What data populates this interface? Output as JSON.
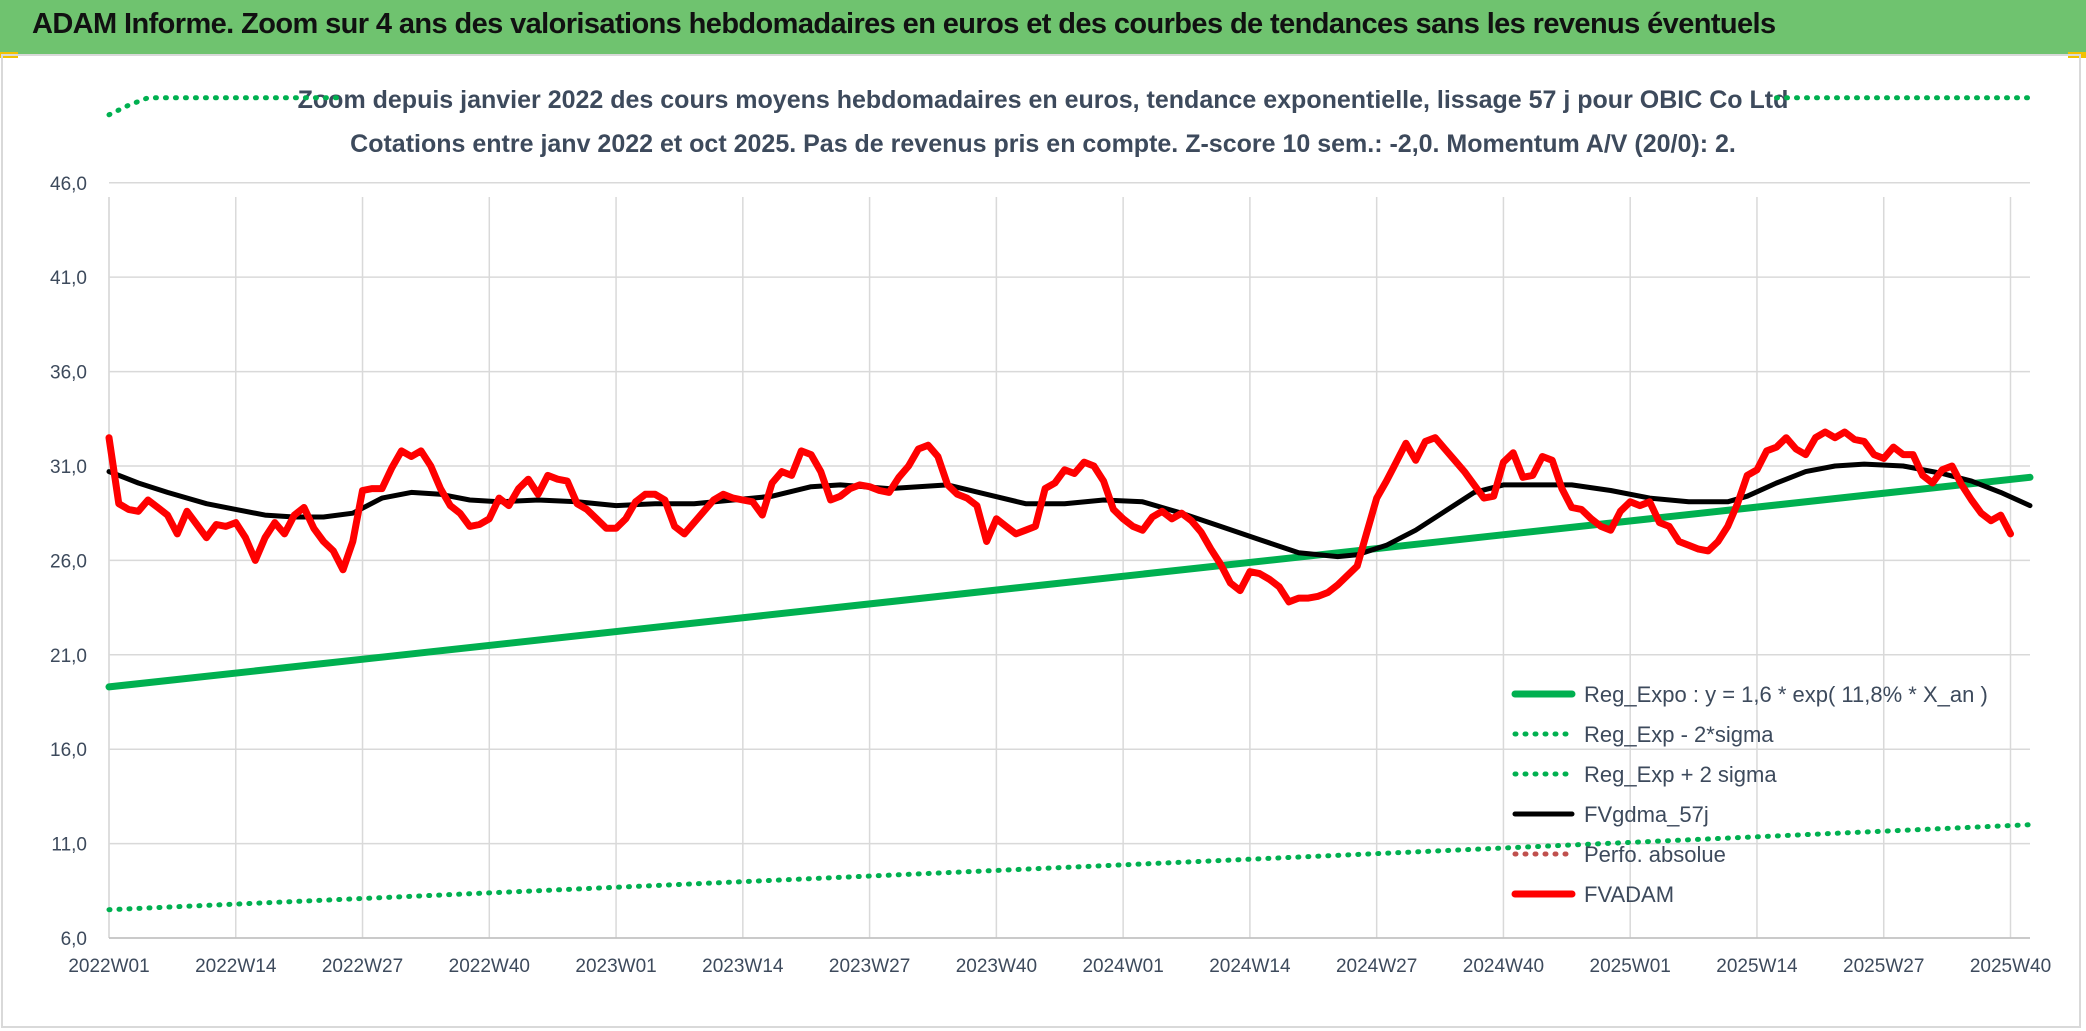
{
  "header": {
    "title": "ADAM Informe. Zoom sur 4 ans des valorisations hebdomadaires en euros et des courbes de tendances sans les revenus éventuels"
  },
  "colors": {
    "header_bg": "#6fc36f",
    "reg_expo": "#00b050",
    "fvgdma": "#000000",
    "fvadam": "#ff0000",
    "grid": "#d9d9d9",
    "text": "#3d4a5c"
  },
  "chart_data": {
    "type": "line",
    "title": "Zoom depuis janvier 2022 des cours moyens hebdomadaires en euros, tendance exponentielle, lissage 57 j pour OBIC Co Ltd",
    "subtitle": "Cotations entre janv 2022 et oct 2025. Pas de revenus pris en compte. Z-score 10 sem.: -2,0. Momentum A/V (20/0): 2.",
    "ylim": [
      6,
      48
    ],
    "yticks": [
      "6,0",
      "11,0",
      "16,0",
      "21,0",
      "26,0",
      "31,0",
      "36,0",
      "41,0",
      "46,0"
    ],
    "x_range_weeks": [
      0,
      197
    ],
    "xticks": [
      {
        "w": 0,
        "label": "2022W01"
      },
      {
        "w": 13,
        "label": "2022W14"
      },
      {
        "w": 26,
        "label": "2022W27"
      },
      {
        "w": 39,
        "label": "2022W40"
      },
      {
        "w": 52,
        "label": "2023W01"
      },
      {
        "w": 65,
        "label": "2023W14"
      },
      {
        "w": 78,
        "label": "2023W27"
      },
      {
        "w": 91,
        "label": "2023W40"
      },
      {
        "w": 104,
        "label": "2024W01"
      },
      {
        "w": 117,
        "label": "2024W14"
      },
      {
        "w": 130,
        "label": "2024W27"
      },
      {
        "w": 143,
        "label": "2024W40"
      },
      {
        "w": 156,
        "label": "2025W01"
      },
      {
        "w": 169,
        "label": "2025W14"
      },
      {
        "w": 182,
        "label": "2025W27"
      },
      {
        "w": 195,
        "label": "2025W40"
      }
    ],
    "legend_position": "bottom-right",
    "grid": true,
    "series": [
      {
        "name": "Reg_Expo : y = 1,6 * exp( 11,8% *  X_an )",
        "style": "solid-thick",
        "color": "#00b050",
        "points": [
          [
            0,
            19.3
          ],
          [
            197,
            30.4
          ]
        ]
      },
      {
        "name": "Reg_Exp - 2*sigma",
        "style": "dotted",
        "color": "#00b050",
        "points": [
          [
            0,
            7.5
          ],
          [
            197,
            12.0
          ]
        ]
      },
      {
        "name": "Reg_Exp + 2 sigma",
        "style": "dotted",
        "color": "#00b050",
        "points": [
          [
            0,
            49.6
          ],
          [
            2,
            50.1
          ],
          [
            4,
            50.5
          ],
          [
            24,
            50.5
          ]
        ],
        "points_right": [
          [
            171,
            50.5
          ],
          [
            197,
            50.5
          ]
        ]
      },
      {
        "name": "FVgdma_57j",
        "style": "solid",
        "color": "#000000",
        "points": [
          [
            0,
            30.7
          ],
          [
            3,
            30.1
          ],
          [
            6,
            29.6
          ],
          [
            10,
            29.0
          ],
          [
            13,
            28.7
          ],
          [
            16,
            28.4
          ],
          [
            19,
            28.3
          ],
          [
            22,
            28.3
          ],
          [
            25,
            28.5
          ],
          [
            28,
            29.3
          ],
          [
            31,
            29.6
          ],
          [
            34,
            29.5
          ],
          [
            37,
            29.2
          ],
          [
            40,
            29.1
          ],
          [
            44,
            29.2
          ],
          [
            48,
            29.1
          ],
          [
            52,
            28.9
          ],
          [
            56,
            29.0
          ],
          [
            60,
            29.0
          ],
          [
            64,
            29.2
          ],
          [
            68,
            29.4
          ],
          [
            72,
            29.9
          ],
          [
            75,
            30.0
          ],
          [
            80,
            29.8
          ],
          [
            86,
            30.0
          ],
          [
            90,
            29.5
          ],
          [
            94,
            29.0
          ],
          [
            98,
            29.0
          ],
          [
            102,
            29.2
          ],
          [
            106,
            29.1
          ],
          [
            110,
            28.5
          ],
          [
            114,
            27.8
          ],
          [
            118,
            27.1
          ],
          [
            122,
            26.4
          ],
          [
            126,
            26.2
          ],
          [
            128,
            26.3
          ],
          [
            131,
            26.8
          ],
          [
            134,
            27.6
          ],
          [
            137,
            28.6
          ],
          [
            140,
            29.6
          ],
          [
            143,
            30.0
          ],
          [
            146,
            30.0
          ],
          [
            150,
            30.0
          ],
          [
            154,
            29.7
          ],
          [
            158,
            29.3
          ],
          [
            162,
            29.1
          ],
          [
            166,
            29.1
          ],
          [
            168,
            29.4
          ],
          [
            171,
            30.1
          ],
          [
            174,
            30.7
          ],
          [
            177,
            31.0
          ],
          [
            180,
            31.1
          ],
          [
            184,
            31.0
          ],
          [
            188,
            30.6
          ],
          [
            191,
            30.2
          ],
          [
            194,
            29.6
          ],
          [
            197,
            28.9
          ]
        ]
      },
      {
        "name": "Perfo. absolue",
        "style": "dotted",
        "color": "#c0504d",
        "points": []
      },
      {
        "name": "FVADAM",
        "style": "solid-thick",
        "color": "#ff0000",
        "points": [
          [
            0,
            32.5
          ],
          [
            1,
            29.0
          ],
          [
            2,
            28.7
          ],
          [
            3,
            28.6
          ],
          [
            4,
            29.2
          ],
          [
            5,
            28.8
          ],
          [
            6,
            28.4
          ],
          [
            7,
            27.4
          ],
          [
            8,
            28.6
          ],
          [
            9,
            27.9
          ],
          [
            10,
            27.2
          ],
          [
            11,
            27.9
          ],
          [
            12,
            27.8
          ],
          [
            13,
            28.0
          ],
          [
            14,
            27.2
          ],
          [
            15,
            26.0
          ],
          [
            16,
            27.2
          ],
          [
            17,
            28.0
          ],
          [
            18,
            27.4
          ],
          [
            19,
            28.4
          ],
          [
            20,
            28.8
          ],
          [
            21,
            27.7
          ],
          [
            22,
            27.0
          ],
          [
            23,
            26.5
          ],
          [
            24,
            25.5
          ],
          [
            25,
            27.0
          ],
          [
            26,
            29.7
          ],
          [
            27,
            29.8
          ],
          [
            28,
            29.8
          ],
          [
            29,
            30.9
          ],
          [
            30,
            31.8
          ],
          [
            31,
            31.5
          ],
          [
            32,
            31.8
          ],
          [
            33,
            31.0
          ],
          [
            34,
            29.8
          ],
          [
            35,
            28.9
          ],
          [
            36,
            28.5
          ],
          [
            37,
            27.8
          ],
          [
            38,
            27.9
          ],
          [
            39,
            28.2
          ],
          [
            40,
            29.3
          ],
          [
            41,
            28.9
          ],
          [
            42,
            29.8
          ],
          [
            43,
            30.3
          ],
          [
            44,
            29.5
          ],
          [
            45,
            30.5
          ],
          [
            46,
            30.3
          ],
          [
            47,
            30.2
          ],
          [
            48,
            29.0
          ],
          [
            49,
            28.7
          ],
          [
            50,
            28.2
          ],
          [
            51,
            27.7
          ],
          [
            52,
            27.7
          ],
          [
            53,
            28.2
          ],
          [
            54,
            29.1
          ],
          [
            55,
            29.5
          ],
          [
            56,
            29.5
          ],
          [
            57,
            29.2
          ],
          [
            58,
            27.8
          ],
          [
            59,
            27.4
          ],
          [
            60,
            28.0
          ],
          [
            61,
            28.6
          ],
          [
            62,
            29.2
          ],
          [
            63,
            29.5
          ],
          [
            64,
            29.3
          ],
          [
            65,
            29.2
          ],
          [
            66,
            29.1
          ],
          [
            67,
            28.4
          ],
          [
            68,
            30.1
          ],
          [
            69,
            30.7
          ],
          [
            70,
            30.5
          ],
          [
            71,
            31.8
          ],
          [
            72,
            31.6
          ],
          [
            73,
            30.7
          ],
          [
            74,
            29.2
          ],
          [
            75,
            29.4
          ],
          [
            76,
            29.8
          ],
          [
            77,
            30.0
          ],
          [
            78,
            29.9
          ],
          [
            79,
            29.7
          ],
          [
            80,
            29.6
          ],
          [
            81,
            30.4
          ],
          [
            82,
            31.0
          ],
          [
            83,
            31.9
          ],
          [
            84,
            32.1
          ],
          [
            85,
            31.5
          ],
          [
            86,
            30.0
          ],
          [
            87,
            29.5
          ],
          [
            88,
            29.3
          ],
          [
            89,
            28.9
          ],
          [
            90,
            27.0
          ],
          [
            91,
            28.2
          ],
          [
            92,
            27.8
          ],
          [
            93,
            27.4
          ],
          [
            94,
            27.6
          ],
          [
            95,
            27.8
          ],
          [
            96,
            29.8
          ],
          [
            97,
            30.1
          ],
          [
            98,
            30.8
          ],
          [
            99,
            30.6
          ],
          [
            100,
            31.2
          ],
          [
            101,
            31.0
          ],
          [
            102,
            30.2
          ],
          [
            103,
            28.7
          ],
          [
            104,
            28.2
          ],
          [
            105,
            27.8
          ],
          [
            106,
            27.6
          ],
          [
            107,
            28.3
          ],
          [
            108,
            28.6
          ],
          [
            109,
            28.2
          ],
          [
            110,
            28.5
          ],
          [
            111,
            28.1
          ],
          [
            112,
            27.5
          ],
          [
            113,
            26.6
          ],
          [
            114,
            25.8
          ],
          [
            115,
            24.8
          ],
          [
            116,
            24.4
          ],
          [
            117,
            25.4
          ],
          [
            118,
            25.3
          ],
          [
            119,
            25.0
          ],
          [
            120,
            24.6
          ],
          [
            121,
            23.8
          ],
          [
            122,
            24.0
          ],
          [
            123,
            24.0
          ],
          [
            124,
            24.1
          ],
          [
            125,
            24.3
          ],
          [
            126,
            24.7
          ],
          [
            127,
            25.2
          ],
          [
            128,
            25.7
          ],
          [
            129,
            27.5
          ],
          [
            130,
            29.3
          ],
          [
            131,
            30.2
          ],
          [
            132,
            31.2
          ],
          [
            133,
            32.2
          ],
          [
            134,
            31.3
          ],
          [
            135,
            32.3
          ],
          [
            136,
            32.5
          ],
          [
            137,
            31.9
          ],
          [
            138,
            31.3
          ],
          [
            139,
            30.7
          ],
          [
            140,
            30.0
          ],
          [
            141,
            29.3
          ],
          [
            142,
            29.4
          ],
          [
            143,
            31.2
          ],
          [
            144,
            31.7
          ],
          [
            145,
            30.4
          ],
          [
            146,
            30.5
          ],
          [
            147,
            31.5
          ],
          [
            148,
            31.3
          ],
          [
            149,
            29.8
          ],
          [
            150,
            28.8
          ],
          [
            151,
            28.7
          ],
          [
            152,
            28.2
          ],
          [
            153,
            27.8
          ],
          [
            154,
            27.6
          ],
          [
            155,
            28.6
          ],
          [
            156,
            29.1
          ],
          [
            157,
            28.9
          ],
          [
            158,
            29.1
          ],
          [
            159,
            28.0
          ],
          [
            160,
            27.8
          ],
          [
            161,
            27.0
          ],
          [
            162,
            26.8
          ],
          [
            163,
            26.6
          ],
          [
            164,
            26.5
          ],
          [
            165,
            27.0
          ],
          [
            166,
            27.8
          ],
          [
            167,
            29.0
          ],
          [
            168,
            30.5
          ],
          [
            169,
            30.8
          ],
          [
            170,
            31.8
          ],
          [
            171,
            32.0
          ],
          [
            172,
            32.5
          ],
          [
            173,
            31.9
          ],
          [
            174,
            31.6
          ],
          [
            175,
            32.5
          ],
          [
            176,
            32.8
          ],
          [
            177,
            32.5
          ],
          [
            178,
            32.8
          ],
          [
            179,
            32.4
          ],
          [
            180,
            32.3
          ],
          [
            181,
            31.6
          ],
          [
            182,
            31.4
          ],
          [
            183,
            32.0
          ],
          [
            184,
            31.6
          ],
          [
            185,
            31.6
          ],
          [
            186,
            30.5
          ],
          [
            187,
            30.1
          ],
          [
            188,
            30.8
          ],
          [
            189,
            31.0
          ],
          [
            190,
            30.0
          ],
          [
            191,
            29.2
          ],
          [
            192,
            28.5
          ],
          [
            193,
            28.1
          ],
          [
            194,
            28.4
          ],
          [
            195,
            27.4
          ]
        ]
      }
    ]
  }
}
